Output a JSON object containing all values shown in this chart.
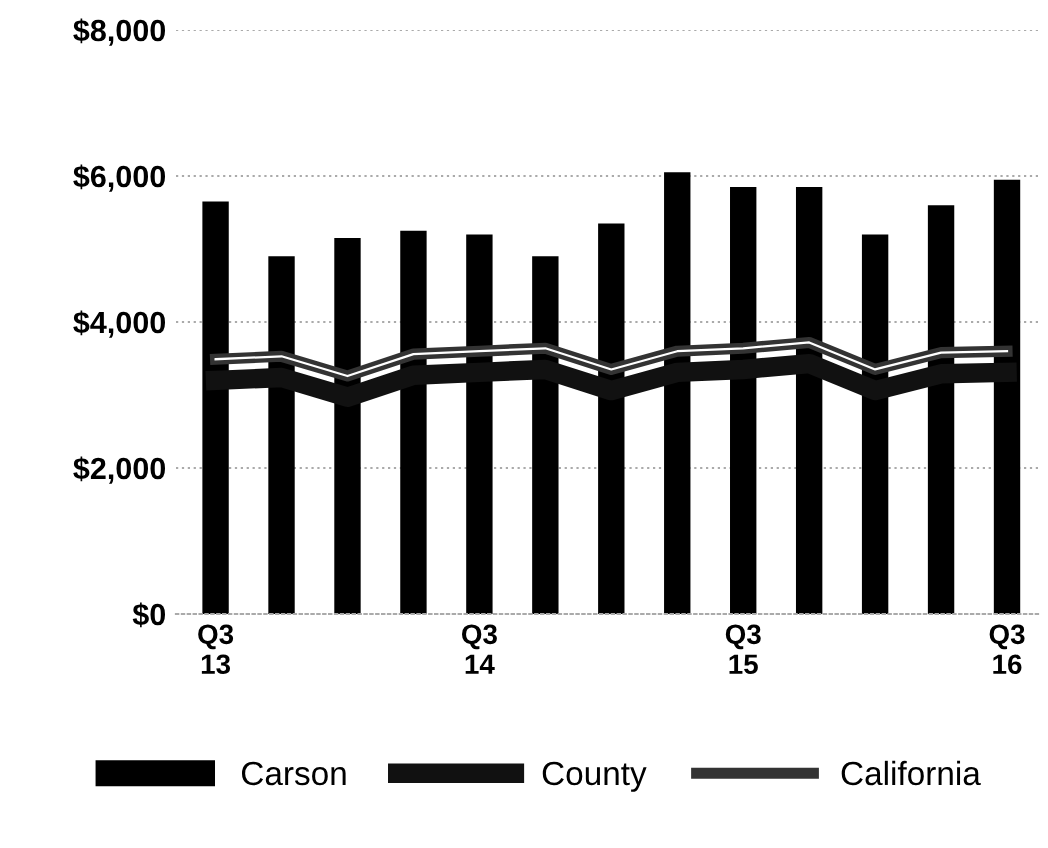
{
  "chart_data": {
    "type": "bar",
    "categories": [
      "Q3\n13",
      null,
      null,
      null,
      "Q3\n14",
      null,
      null,
      null,
      "Q3\n15",
      null,
      null,
      null,
      "Q3\n16"
    ],
    "series": [
      {
        "name": "Carson",
        "color": "#000000",
        "values": [
          5650,
          4900,
          5150,
          5250,
          5200,
          4900,
          5350,
          6050,
          5850,
          5850,
          5200,
          5600,
          5950
        ]
      },
      {
        "name": "County",
        "type": "line",
        "color": "#111111",
        "values": [
          3200,
          3240,
          2970,
          3270,
          3310,
          3350,
          3060,
          3310,
          3350,
          3430,
          3060,
          3290,
          3310
        ]
      },
      {
        "name": "California",
        "type": "line",
        "color": "#333333",
        "values": [
          3490,
          3530,
          3260,
          3560,
          3600,
          3640,
          3350,
          3600,
          3640,
          3720,
          3350,
          3580,
          3600
        ]
      }
    ],
    "ylim": [
      0,
      8000
    ],
    "yticks": [
      {
        "value": 0,
        "label": "$0"
      },
      {
        "value": 2000,
        "label": "$2,000"
      },
      {
        "value": 4000,
        "label": "$4,000"
      },
      {
        "value": 6000,
        "label": "$6,000"
      },
      {
        "value": 8000,
        "label": "$8,000"
      }
    ],
    "grid": "y",
    "legend": "bottom",
    "marker": "none"
  }
}
